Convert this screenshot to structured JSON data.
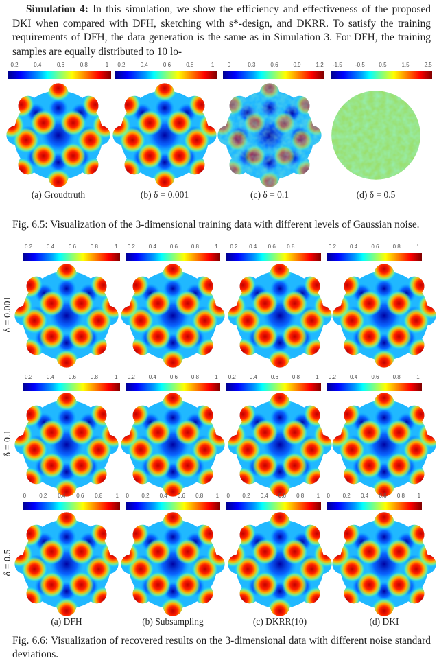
{
  "paragraph": {
    "lead": "Simulation 4:",
    "text": " In this simulation, we show the efficiency and effectiveness of the proposed DKI when compared with DFH, sketching with s*-design, and DKRR. To satisfy the training requirements of DFH, the data generation is the same as in Simulation 3.  For DFH, the training samples are equally distributed to 10 lo-"
  },
  "fig65": {
    "colorbars": [
      [
        "0.2",
        "0.4",
        "0.6",
        "0.8",
        "1"
      ],
      [
        "0.2",
        "0.4",
        "0.6",
        "0.8",
        "1"
      ],
      [
        "0",
        "0.3",
        "0.6",
        "0.9",
        "1.2"
      ],
      [
        "-1.5",
        "-0.5",
        "0.5",
        "1.5",
        "2.5"
      ]
    ],
    "subcaptions": [
      "(a) Groudtruth",
      "(b) δ = 0.001",
      "(c) δ = 0.1",
      "(d) δ = 0.5"
    ],
    "caption": "Fig. 6.5:  Visualization of the 3-dimensional training data with different levels of Gaussian noise."
  },
  "fig66": {
    "rows": [
      {
        "label": "δ = 0.001",
        "colorbars": [
          [
            "0.2",
            "0.4",
            "0.6",
            "0.8",
            "1"
          ],
          [
            "0.2",
            "0.4",
            "0.6",
            "0.8",
            "1"
          ],
          [
            "0.2",
            "0.4",
            "0.6",
            "0.8"
          ],
          [
            "0.2",
            "0.4",
            "0.6",
            "0.8",
            "1"
          ]
        ]
      },
      {
        "label": "δ = 0.1",
        "colorbars": [
          [
            "0.2",
            "0.4",
            "0.6",
            "0.8",
            "1"
          ],
          [
            "0.2",
            "0.4",
            "0.6",
            "0.8",
            "1"
          ],
          [
            "0.2",
            "0.4",
            "0.6",
            "0.8",
            "1"
          ],
          [
            "0.2",
            "0.4",
            "0.6",
            "0.8",
            "1"
          ]
        ]
      },
      {
        "label": "δ = 0.5",
        "colorbars": [
          [
            "0",
            "0.2",
            "0.4",
            "0.6",
            "0.8",
            "1"
          ],
          [
            "0",
            "0.2",
            "0.4",
            "0.6",
            "0.8",
            "1"
          ],
          [
            "0",
            "0.2",
            "0.4",
            "0.6",
            "0.8",
            "1"
          ],
          [
            "0",
            "0.2",
            "0.4",
            "0.6",
            "0.8",
            "1"
          ]
        ]
      }
    ],
    "subcaptions": [
      "(a) DFH",
      "(b) Subsampling",
      "(c) DKRR(10)",
      "(d) DKI"
    ],
    "caption": "Fig. 6.6: Visualization of recovered results on the 3-dimensional data with different noise standard deviations."
  },
  "colormap": "jet"
}
